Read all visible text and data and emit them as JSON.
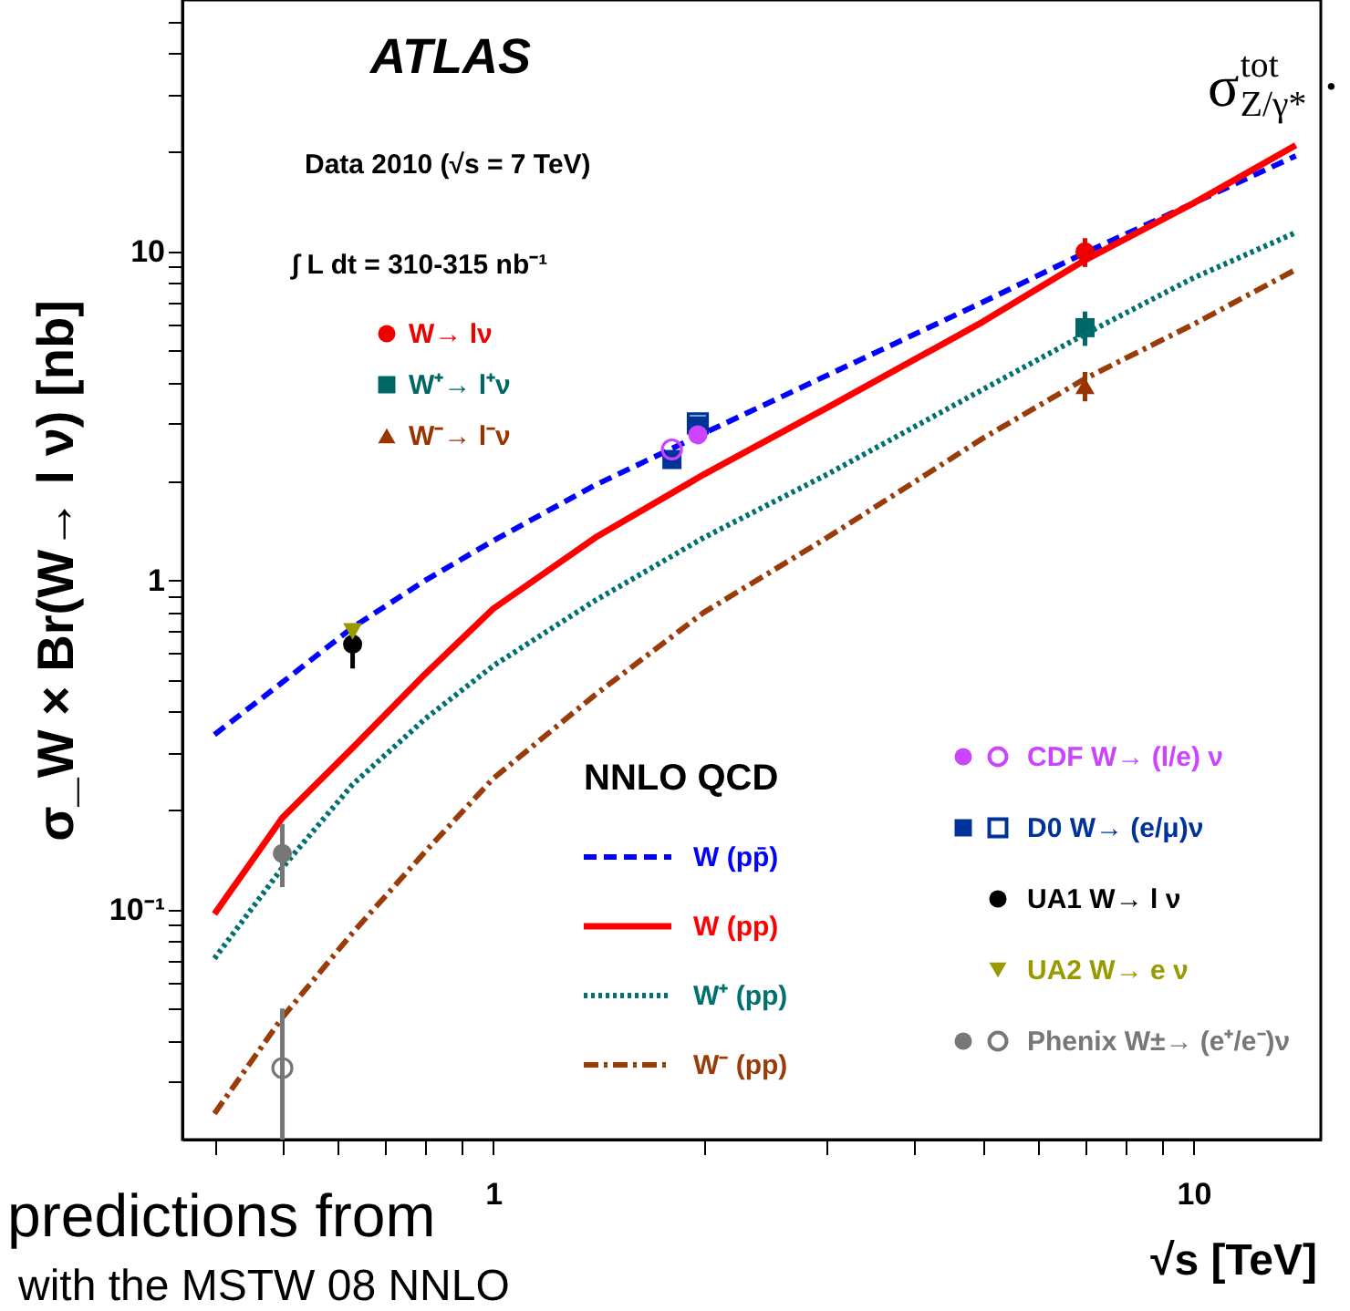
{
  "chart_data": {
    "type": "line",
    "xlabel": "√s [TeV]",
    "ylabel": "σ_W × Br(W→ l ν) [nb]",
    "legend_title": "NNLO QCD",
    "log": "xy",
    "legend": "bottom right",
    "annotations": [
      "ATLAS",
      "Data 2010 (√s = 7 TeV)",
      "∫ L dt = 310-315 nb⁻¹",
      "predictions from",
      "with the MSTW 08 NNLO",
      "σ$^{tot}$$_{Z/γ*}$ ·"
    ],
    "xlim": [
      0.36,
      15.2
    ],
    "ylim": [
      0.02,
      58
    ],
    "xticks": [
      {
        "value": 0.4,
        "label": null
      },
      {
        "value": 0.5,
        "label": null
      },
      {
        "value": 0.6,
        "label": null
      },
      {
        "value": 0.7,
        "label": null
      },
      {
        "value": 0.8,
        "label": null
      },
      {
        "value": 0.9,
        "label": null
      },
      1,
      {
        "value": 2,
        "label": null
      },
      {
        "value": 3,
        "label": null
      },
      {
        "value": 4,
        "label": null
      },
      {
        "value": 5,
        "label": null
      },
      {
        "value": 6,
        "label": null
      },
      {
        "value": 7,
        "label": null
      },
      {
        "value": 8,
        "label": null
      },
      {
        "value": 9,
        "label": null
      },
      10
    ],
    "yticks": [
      {
        "value": 0.03,
        "label": null
      },
      {
        "value": 0.04,
        "label": null
      },
      {
        "value": 0.05,
        "label": null
      },
      {
        "value": 0.06,
        "label": null
      },
      {
        "value": 0.07,
        "label": null
      },
      {
        "value": 0.08,
        "label": null
      },
      {
        "value": 0.09,
        "label": null
      },
      {
        "value": 0.1,
        "label": "10⁻¹"
      },
      {
        "value": 0.2,
        "label": null
      },
      {
        "value": 0.3,
        "label": null
      },
      {
        "value": 0.4,
        "label": null
      },
      {
        "value": 0.5,
        "label": null
      },
      {
        "value": 0.6,
        "label": null
      },
      {
        "value": 0.7,
        "label": null
      },
      {
        "value": 0.8,
        "label": null
      },
      {
        "value": 0.9,
        "label": null
      },
      1,
      {
        "value": 2,
        "label": null
      },
      {
        "value": 3,
        "label": null
      },
      {
        "value": 4,
        "label": null
      },
      {
        "value": 5,
        "label": null
      },
      {
        "value": 6,
        "label": null
      },
      {
        "value": 7,
        "label": null
      },
      {
        "value": 8,
        "label": null
      },
      {
        "value": 9,
        "label": null
      },
      10,
      {
        "value": 20,
        "label": null
      },
      {
        "value": 30,
        "label": null
      },
      {
        "value": 40,
        "label": null
      },
      {
        "value": 50,
        "label": null
      }
    ],
    "series": [
      {
        "name": "W (pp̄)",
        "type": "line",
        "color": "#0000ff",
        "line_style": "dashed",
        "x": [
          0.4,
          0.5,
          0.63,
          0.8,
          1,
          1.4,
          2,
          3,
          5,
          7,
          10,
          14
        ],
        "values": [
          0.34,
          0.49,
          0.72,
          1.0,
          1.32,
          1.95,
          2.8,
          4.2,
          7.0,
          9.9,
          14,
          19.5
        ]
      },
      {
        "name": "W (pp)",
        "type": "line",
        "color": "#ff0000",
        "line_style": "solid",
        "x": [
          0.4,
          0.5,
          0.63,
          0.8,
          1,
          1.4,
          2,
          3,
          5,
          7,
          10,
          14
        ],
        "values": [
          0.097,
          0.19,
          0.31,
          0.52,
          0.82,
          1.35,
          2.1,
          3.35,
          6.1,
          9.4,
          14,
          21
        ]
      },
      {
        "name": "W⁺ (pp)",
        "type": "line",
        "color": "#007070",
        "line_style": "dotted",
        "x": [
          0.4,
          0.5,
          0.63,
          0.8,
          1,
          1.4,
          2,
          3,
          5,
          7,
          10,
          14
        ],
        "values": [
          0.071,
          0.134,
          0.24,
          0.38,
          0.55,
          0.87,
          1.35,
          2.1,
          3.8,
          5.6,
          8.3,
          11.4
        ]
      },
      {
        "name": "W⁻ (pp)",
        "type": "line",
        "color": "#9a3b0a",
        "line_style": "dashdot",
        "x": [
          0.4,
          0.5,
          0.63,
          0.8,
          1,
          1.4,
          2,
          3,
          5,
          7,
          10,
          14
        ],
        "values": [
          0.024,
          0.047,
          0.085,
          0.15,
          0.25,
          0.45,
          0.8,
          1.35,
          2.7,
          4.1,
          6.0,
          8.8
        ]
      },
      {
        "name": "W→ lν",
        "type": "scatter",
        "color": "#ee0000",
        "marker": "circle",
        "x": [
          7
        ],
        "values": [
          9.96
        ],
        "errors": [
          1.0
        ]
      },
      {
        "name": "W⁺→ l⁺ν",
        "type": "scatter",
        "color": "#006666",
        "marker": "square",
        "x": [
          7
        ],
        "values": [
          5.86
        ],
        "errors": [
          0.7
        ]
      },
      {
        "name": "W⁻→ l⁻ν",
        "type": "scatter",
        "color": "#993300",
        "marker": "triangle",
        "x": [
          7
        ],
        "values": [
          3.9
        ],
        "errors": [
          0.4
        ]
      },
      {
        "name": "CDF W→ (l/e) ν",
        "type": "scatter",
        "color": "#cc44ff",
        "marker": "circle",
        "x": [
          1.96
        ],
        "values": [
          2.77
        ]
      },
      {
        "type": "scatter",
        "color": "#cc44ff",
        "marker": "circle-open",
        "x": [
          1.8
        ],
        "values": [
          2.5
        ]
      },
      {
        "name": "D0 W→ (e/μ)ν",
        "type": "scatter",
        "color": "#003399",
        "marker": "square",
        "x": [
          1.8,
          1.96
        ],
        "values": [
          2.33,
          2.95
        ]
      },
      {
        "type": "scatter",
        "color": "#003399",
        "marker": "square-open",
        "x": [
          1.96
        ],
        "values": [
          3.0
        ]
      },
      {
        "name": "UA1 W→ l ν",
        "type": "scatter",
        "color": "#000000",
        "marker": "circle",
        "x": [
          0.63
        ],
        "values": [
          0.64
        ],
        "errors": [
          0.1
        ]
      },
      {
        "name": "UA2 W→ e ν",
        "type": "scatter",
        "color": "#999900",
        "marker": "triangle-down",
        "x": [
          0.63
        ],
        "values": [
          0.7
        ]
      },
      {
        "name": "Phenix W±→ (e⁺/e⁻)ν",
        "type": "scatter",
        "color": "#777777",
        "marker": "circle",
        "x": [
          0.5
        ],
        "values": [
          0.148
        ],
        "errors": [
          [
            0.117,
            0.182
          ]
        ]
      },
      {
        "type": "scatter",
        "color": "#777777",
        "marker": "circle-open",
        "x": [
          0.5
        ],
        "values": [
          0.033
        ],
        "errors": [
          [
            0.02,
            0.05
          ]
        ]
      }
    ]
  }
}
